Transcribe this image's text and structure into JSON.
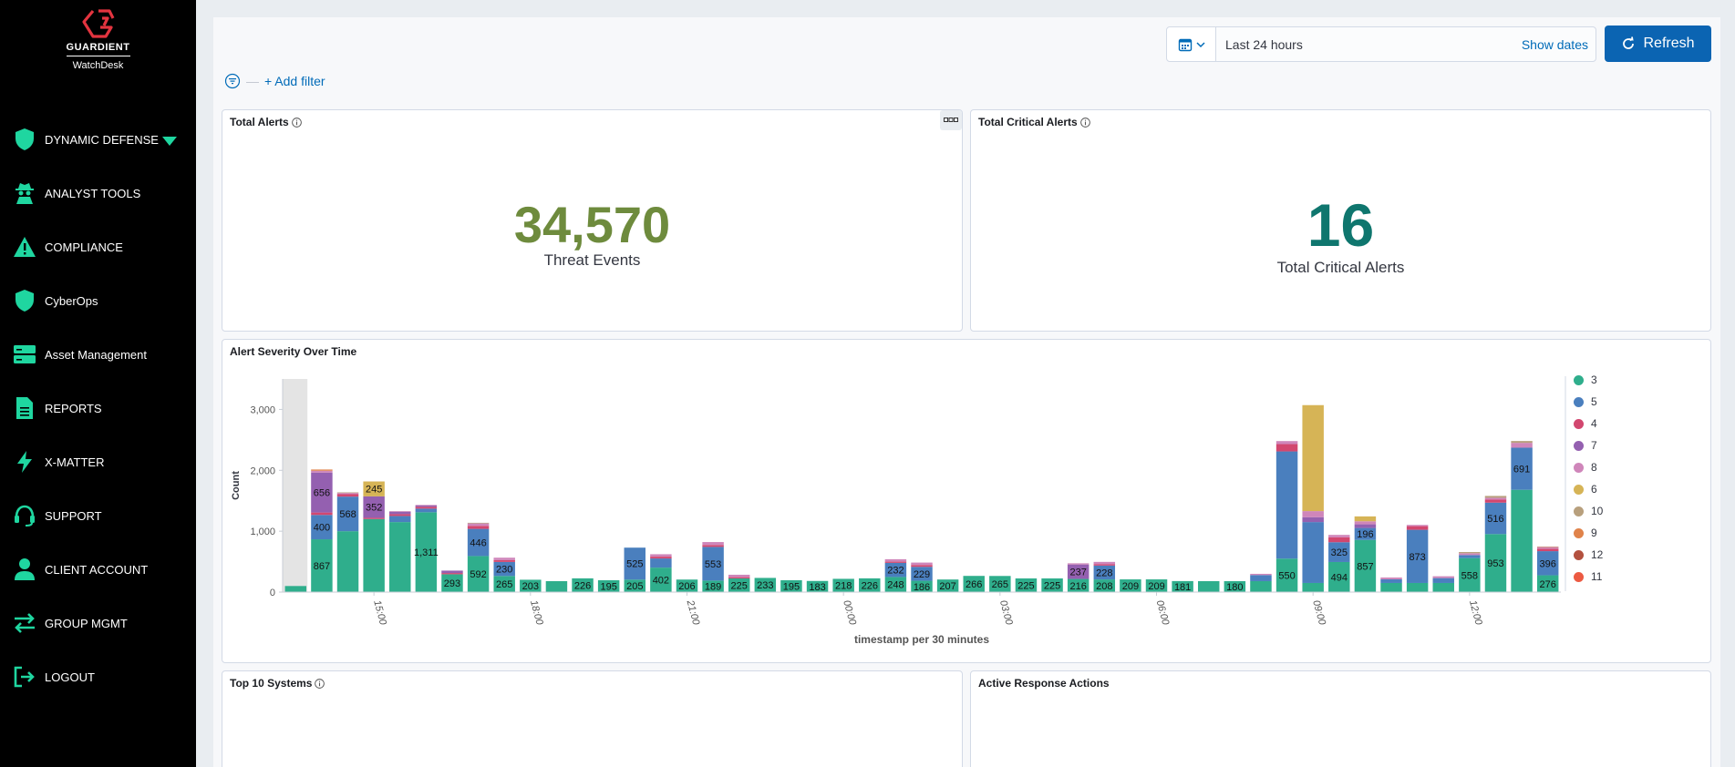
{
  "brand": {
    "name": "GUARDIENT",
    "product": "WatchDesk"
  },
  "sidebar": {
    "items": [
      {
        "label": "DYNAMIC DEFENSE",
        "icon": "shield-icon"
      },
      {
        "label": "ANALYST TOOLS",
        "icon": "spy-icon"
      },
      {
        "label": "COMPLIANCE",
        "icon": "warning-icon"
      },
      {
        "label": "CyberOps",
        "icon": "shield-icon"
      },
      {
        "label": "Asset Management",
        "icon": "server-icon"
      },
      {
        "label": "REPORTS",
        "icon": "document-icon"
      },
      {
        "label": "X-MATTER",
        "icon": "bolt-icon"
      },
      {
        "label": "SUPPORT",
        "icon": "headset-icon"
      },
      {
        "label": "CLIENT ACCOUNT",
        "icon": "user-icon"
      },
      {
        "label": "GROUP MGMT",
        "icon": "transfer-icon"
      },
      {
        "label": "LOGOUT",
        "icon": "logout-icon"
      }
    ]
  },
  "toolbar": {
    "date_range": "Last 24 hours",
    "show_dates": "Show dates",
    "refresh": "Refresh",
    "add_filter": "+ Add filter"
  },
  "panels": {
    "total_alerts": {
      "title": "Total Alerts",
      "value": "34,570",
      "label": "Threat Events"
    },
    "total_critical": {
      "title": "Total Critical Alerts",
      "value": "16",
      "label": "Total Critical Alerts"
    },
    "severity": {
      "title": "Alert Severity Over Time"
    },
    "top_systems": {
      "title": "Top 10 Systems"
    },
    "active_response": {
      "title": "Active Response Actions"
    }
  },
  "colors": {
    "accent": "#0b64b2",
    "metric_green": "#6e8b3d",
    "metric_teal": "#0f766e",
    "sidebar_icon": "#1fd6a0"
  },
  "chart_data": {
    "type": "bar",
    "stacked": true,
    "xlabel": "timestamp per 30 minutes",
    "ylabel": "Count",
    "ylim": [
      0,
      3500
    ],
    "yticks": [
      0,
      1000,
      2000,
      3000
    ],
    "ytick_labels": [
      "0",
      "1,000",
      "2,000",
      "3,000"
    ],
    "xtick_labels": [
      {
        "index": 3.5,
        "label": "15:00"
      },
      {
        "index": 9.5,
        "label": "18:00"
      },
      {
        "index": 15.5,
        "label": "21:00"
      },
      {
        "index": 21.5,
        "label": "00:00"
      },
      {
        "index": 27.5,
        "label": "03:00"
      },
      {
        "index": 33.5,
        "label": "06:00"
      },
      {
        "index": 39.5,
        "label": "09:00"
      },
      {
        "index": 45.5,
        "label": "12:00"
      }
    ],
    "legend": [
      "3",
      "5",
      "4",
      "7",
      "8",
      "6",
      "10",
      "9",
      "12",
      "11"
    ],
    "series_colors": {
      "3": "#2fae8c",
      "5": "#4a7fbe",
      "4": "#d2476f",
      "7": "#9460b0",
      "8": "#cf86ba",
      "6": "#d6b456",
      "10": "#b8a07d",
      "9": "#e0834a",
      "12": "#b3513f",
      "11": "#ec5a42"
    },
    "bars": [
      {
        "3": 100
      },
      {
        "3": 867,
        "5": 400,
        "7": 656,
        "4": 40,
        "8": 30,
        "9": 20
      },
      {
        "3": 1000,
        "5": 568,
        "4": 40,
        "8": 20,
        "10": 10
      },
      {
        "3": 1200,
        "7": 352,
        "6": 245,
        "4": 20
      },
      {
        "3": 1150,
        "5": 100,
        "7": 40,
        "4": 30,
        "8": 10
      },
      {
        "3": 1311,
        "5": 60,
        "4": 30,
        "7": 20,
        "8": 10
      },
      {
        "3": 293,
        "7": 40,
        "4": 20
      },
      {
        "3": 592,
        "5": 446,
        "4": 50,
        "8": 40,
        "10": 10
      },
      {
        "3": 265,
        "5": 230,
        "8": 40,
        "4": 30
      },
      {
        "3": 203
      },
      {
        "3": 180
      },
      {
        "3": 226
      },
      {
        "3": 195
      },
      {
        "3": 205,
        "5": 525
      },
      {
        "3": 402,
        "5": 150,
        "8": 40,
        "4": 30
      },
      {
        "3": 206
      },
      {
        "3": 189,
        "5": 553,
        "8": 50,
        "4": 30
      },
      {
        "3": 225,
        "8": 40,
        "4": 20
      },
      {
        "3": 233
      },
      {
        "3": 195
      },
      {
        "3": 183
      },
      {
        "3": 218
      },
      {
        "3": 226
      },
      {
        "3": 248,
        "5": 232,
        "8": 40,
        "4": 20
      },
      {
        "3": 186,
        "5": 229,
        "8": 40,
        "4": 30
      },
      {
        "3": 207
      },
      {
        "3": 266
      },
      {
        "3": 265
      },
      {
        "3": 225
      },
      {
        "3": 225
      },
      {
        "3": 216,
        "7": 237,
        "8": 20
      },
      {
        "3": 208,
        "5": 228,
        "8": 40,
        "4": 20
      },
      {
        "3": 209
      },
      {
        "3": 209
      },
      {
        "3": 181
      },
      {
        "3": 180
      },
      {
        "3": 180
      },
      {
        "3": 180,
        "5": 100,
        "8": 20
      },
      {
        "3": 550,
        "5": 1760,
        "4": 120,
        "8": 50
      },
      {
        "3": 150,
        "5": 1000,
        "7": 80,
        "8": 100,
        "6": 1740
      },
      {
        "3": 494,
        "5": 325,
        "4": 80,
        "8": 40
      },
      {
        "3": 857,
        "5": 196,
        "7": 60,
        "8": 50,
        "6": 80
      },
      {
        "3": 150,
        "5": 60,
        "8": 30
      },
      {
        "3": 150,
        "5": 873,
        "4": 60,
        "8": 20
      },
      {
        "3": 150,
        "5": 80,
        "8": 30
      },
      {
        "3": 558,
        "5": 50,
        "8": 30,
        "10": 20
      },
      {
        "3": 953,
        "5": 516,
        "4": 50,
        "8": 30,
        "10": 30
      },
      {
        "3": 1680,
        "5": 691,
        "8": 80,
        "10": 30
      },
      {
        "3": 276,
        "5": 396,
        "4": 40,
        "8": 20,
        "12": 10
      }
    ],
    "bar_labels": [
      {
        "index": 1,
        "series": "3",
        "text": "867"
      },
      {
        "index": 1,
        "series": "5",
        "text": "400"
      },
      {
        "index": 1,
        "series": "7",
        "text": "656"
      },
      {
        "index": 2,
        "series": "5",
        "text": "568"
      },
      {
        "index": 3,
        "series": "7",
        "text": "352"
      },
      {
        "index": 3,
        "series": "6",
        "text": "245"
      },
      {
        "index": 5,
        "series": "3",
        "text": "1,311"
      },
      {
        "index": 6,
        "series": "3",
        "text": "293"
      },
      {
        "index": 7,
        "series": "3",
        "text": "592"
      },
      {
        "index": 7,
        "series": "5",
        "text": "446"
      },
      {
        "index": 8,
        "series": "3",
        "text": "265"
      },
      {
        "index": 8,
        "series": "5",
        "text": "230"
      },
      {
        "index": 9,
        "series": "3",
        "text": "203"
      },
      {
        "index": 11,
        "series": "3",
        "text": "226"
      },
      {
        "index": 12,
        "series": "3",
        "text": "195"
      },
      {
        "index": 13,
        "series": "3",
        "text": "205"
      },
      {
        "index": 13,
        "series": "5",
        "text": "525"
      },
      {
        "index": 14,
        "series": "3",
        "text": "402"
      },
      {
        "index": 15,
        "series": "3",
        "text": "206"
      },
      {
        "index": 16,
        "series": "3",
        "text": "189"
      },
      {
        "index": 16,
        "series": "5",
        "text": "553"
      },
      {
        "index": 17,
        "series": "3",
        "text": "225"
      },
      {
        "index": 18,
        "series": "3",
        "text": "233"
      },
      {
        "index": 19,
        "series": "3",
        "text": "195"
      },
      {
        "index": 20,
        "series": "3",
        "text": "183"
      },
      {
        "index": 21,
        "series": "3",
        "text": "218"
      },
      {
        "index": 22,
        "series": "3",
        "text": "226"
      },
      {
        "index": 23,
        "series": "3",
        "text": "248"
      },
      {
        "index": 23,
        "series": "5",
        "text": "232"
      },
      {
        "index": 24,
        "series": "3",
        "text": "186"
      },
      {
        "index": 24,
        "series": "5",
        "text": "229"
      },
      {
        "index": 25,
        "series": "3",
        "text": "207"
      },
      {
        "index": 26,
        "series": "3",
        "text": "266"
      },
      {
        "index": 27,
        "series": "3",
        "text": "265"
      },
      {
        "index": 28,
        "series": "3",
        "text": "225"
      },
      {
        "index": 29,
        "series": "3",
        "text": "225"
      },
      {
        "index": 30,
        "series": "3",
        "text": "216"
      },
      {
        "index": 30,
        "series": "7",
        "text": "237"
      },
      {
        "index": 31,
        "series": "3",
        "text": "208"
      },
      {
        "index": 31,
        "series": "5",
        "text": "228"
      },
      {
        "index": 32,
        "series": "3",
        "text": "209"
      },
      {
        "index": 33,
        "series": "3",
        "text": "209"
      },
      {
        "index": 34,
        "series": "3",
        "text": "181"
      },
      {
        "index": 36,
        "series": "3",
        "text": "180"
      },
      {
        "index": 38,
        "series": "3",
        "text": "550"
      },
      {
        "index": 40,
        "series": "3",
        "text": "494"
      },
      {
        "index": 40,
        "series": "5",
        "text": "325"
      },
      {
        "index": 41,
        "series": "3",
        "text": "857"
      },
      {
        "index": 41,
        "series": "5",
        "text": "196"
      },
      {
        "index": 43,
        "series": "5",
        "text": "873"
      },
      {
        "index": 45,
        "series": "3",
        "text": "558"
      },
      {
        "index": 46,
        "series": "3",
        "text": "953"
      },
      {
        "index": 46,
        "series": "5",
        "text": "516"
      },
      {
        "index": 47,
        "series": "5",
        "text": "691"
      },
      {
        "index": 48,
        "series": "3",
        "text": "276"
      },
      {
        "index": 48,
        "series": "5",
        "text": "396"
      }
    ]
  }
}
